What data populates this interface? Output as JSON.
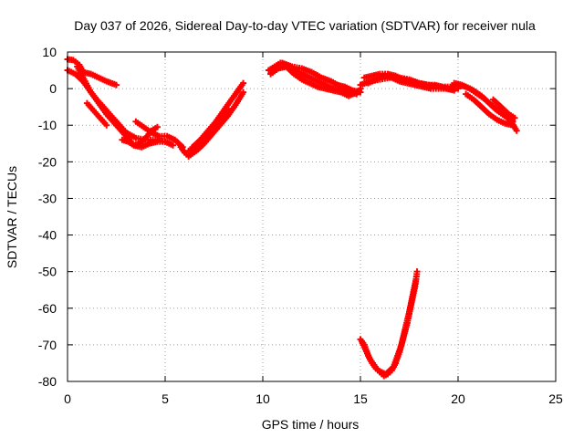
{
  "chart_data": {
    "type": "scatter",
    "title": "Day 037 of 2026, Sidereal Day-to-day VTEC variation (SDTVAR) for receiver nula",
    "xlabel": "GPS time / hours",
    "ylabel": "SDTVAR / TECUs",
    "xlim": [
      0,
      25
    ],
    "ylim": [
      -80,
      10
    ],
    "xticks": [
      0,
      5,
      10,
      15,
      20,
      25
    ],
    "yticks": [
      10,
      0,
      -10,
      -20,
      -30,
      -40,
      -50,
      -60,
      -70,
      -80
    ],
    "xtick_labels": [
      "0",
      "5",
      "10",
      "15",
      "20",
      "25"
    ],
    "ytick_labels": [
      "10",
      "0",
      "-10",
      "-20",
      "-30",
      "-40",
      "-50",
      "-60",
      "-70",
      "-80"
    ],
    "grid": true,
    "marker_color": "#ff0000",
    "series": [
      {
        "name": "track-a",
        "points": [
          [
            0,
            8
          ],
          [
            0.3,
            7.8
          ],
          [
            0.6,
            6.5
          ],
          [
            0.8,
            4.5
          ],
          [
            1.2,
            4
          ],
          [
            1.6,
            3
          ],
          [
            2.0,
            2
          ],
          [
            2.5,
            1
          ]
        ]
      },
      {
        "name": "track-b",
        "points": [
          [
            0,
            5
          ],
          [
            0.4,
            4
          ],
          [
            0.8,
            2
          ],
          [
            1.2,
            -1
          ],
          [
            1.6,
            -4
          ],
          [
            2.0,
            -7
          ],
          [
            2.5,
            -10
          ],
          [
            3.0,
            -13
          ],
          [
            3.4,
            -15.5
          ],
          [
            3.8,
            -16
          ],
          [
            4.2,
            -15
          ],
          [
            4.6,
            -14.5
          ],
          [
            5.0,
            -14.5
          ],
          [
            5.4,
            -15.5
          ]
        ]
      },
      {
        "name": "track-c",
        "points": [
          [
            0.5,
            6
          ],
          [
            0.9,
            2
          ],
          [
            1.2,
            -1
          ],
          [
            1.5,
            -3
          ],
          [
            2.0,
            -6
          ],
          [
            2.5,
            -9
          ],
          [
            3.0,
            -12
          ],
          [
            3.5,
            -13.5
          ],
          [
            4.0,
            -14
          ],
          [
            4.5,
            -14
          ],
          [
            5.0,
            -14.5
          ]
        ]
      },
      {
        "name": "track-d",
        "points": [
          [
            1.0,
            -4
          ],
          [
            1.5,
            -7
          ],
          [
            2.0,
            -10
          ]
        ]
      },
      {
        "name": "track-e",
        "points": [
          [
            3.5,
            -9
          ],
          [
            3.9,
            -10.5
          ],
          [
            4.3,
            -12
          ],
          [
            4.7,
            -13
          ],
          [
            5.1,
            -13
          ],
          [
            5.5,
            -14
          ],
          [
            5.9,
            -16
          ]
        ]
      },
      {
        "name": "track-f",
        "points": [
          [
            2.8,
            -14
          ],
          [
            3.1,
            -14.5
          ],
          [
            3.4,
            -15.5
          ],
          [
            3.7,
            -15
          ],
          [
            4.0,
            -13.5
          ],
          [
            4.3,
            -11.5
          ],
          [
            4.6,
            -10.5
          ]
        ]
      },
      {
        "name": "track-g",
        "points": [
          [
            5.8,
            -16
          ],
          [
            6.0,
            -17.5
          ],
          [
            6.2,
            -18.5
          ],
          [
            6.6,
            -17
          ],
          [
            7.0,
            -15
          ],
          [
            7.4,
            -12.5
          ],
          [
            7.8,
            -10
          ],
          [
            8.2,
            -7.5
          ],
          [
            8.6,
            -4.5
          ],
          [
            9.0,
            -1
          ]
        ]
      },
      {
        "name": "track-h",
        "points": [
          [
            6.4,
            -16
          ],
          [
            6.8,
            -14
          ],
          [
            7.2,
            -11.5
          ],
          [
            7.6,
            -9
          ],
          [
            8.0,
            -6
          ],
          [
            8.4,
            -3
          ],
          [
            8.8,
            0
          ],
          [
            9.0,
            1.5
          ]
        ]
      },
      {
        "name": "track-i",
        "points": [
          [
            6.2,
            -17
          ],
          [
            6.6,
            -16
          ],
          [
            7.0,
            -13.5
          ],
          [
            7.4,
            -11
          ],
          [
            7.8,
            -8.5
          ],
          [
            8.2,
            -5.5
          ]
        ]
      },
      {
        "name": "track-j",
        "points": [
          [
            10.3,
            5
          ],
          [
            10.6,
            6
          ],
          [
            10.9,
            7
          ],
          [
            11.2,
            6.5
          ],
          [
            11.6,
            5
          ],
          [
            12.0,
            4
          ],
          [
            12.4,
            3
          ],
          [
            12.8,
            2
          ],
          [
            13.2,
            1
          ],
          [
            13.6,
            0
          ],
          [
            14.0,
            -0.5
          ],
          [
            14.4,
            -1
          ],
          [
            14.8,
            -1.5
          ],
          [
            15.0,
            0
          ]
        ]
      },
      {
        "name": "track-k",
        "points": [
          [
            10.4,
            4
          ],
          [
            10.8,
            5.5
          ],
          [
            11.2,
            6
          ],
          [
            11.6,
            4
          ],
          [
            12.0,
            2.5
          ],
          [
            12.4,
            1.5
          ],
          [
            12.8,
            0.5
          ],
          [
            13.2,
            0
          ],
          [
            13.6,
            -0.5
          ],
          [
            14.0,
            -1
          ],
          [
            14.4,
            -2
          ],
          [
            14.6,
            -1.5
          ]
        ]
      },
      {
        "name": "track-l",
        "points": [
          [
            11.0,
            7
          ],
          [
            11.5,
            6
          ],
          [
            12.0,
            5.5
          ],
          [
            12.5,
            4.5
          ],
          [
            13.0,
            3
          ],
          [
            13.5,
            2
          ],
          [
            14.0,
            0.5
          ],
          [
            14.5,
            -0.5
          ]
        ]
      },
      {
        "name": "track-m",
        "points": [
          [
            13.8,
            1
          ],
          [
            14.2,
            0.5
          ],
          [
            14.6,
            -0.5
          ],
          [
            15.0,
            -1
          ]
        ]
      },
      {
        "name": "track-n",
        "points": [
          [
            15.0,
            1
          ],
          [
            15.5,
            2
          ],
          [
            16.0,
            2.5
          ],
          [
            16.5,
            3
          ],
          [
            17.0,
            3
          ],
          [
            17.5,
            2.5
          ],
          [
            18.0,
            1.5
          ],
          [
            18.5,
            1
          ],
          [
            19.0,
            0.5
          ],
          [
            19.5,
            0
          ],
          [
            20.0,
            0
          ]
        ]
      },
      {
        "name": "track-o",
        "points": [
          [
            15.2,
            3
          ],
          [
            15.6,
            3.5
          ],
          [
            16.0,
            4
          ],
          [
            16.4,
            4
          ],
          [
            16.8,
            3.5
          ],
          [
            17.2,
            2.5
          ],
          [
            17.6,
            2
          ],
          [
            18.0,
            1.5
          ],
          [
            18.4,
            1
          ],
          [
            18.8,
            1
          ],
          [
            19.2,
            0.5
          ],
          [
            19.6,
            0.5
          ],
          [
            20.0,
            1
          ],
          [
            20.4,
            0.5
          ],
          [
            20.8,
            -0.5
          ],
          [
            21.2,
            -2
          ],
          [
            21.6,
            -4
          ],
          [
            22.0,
            -6
          ],
          [
            22.4,
            -7.5
          ],
          [
            22.8,
            -9
          ]
        ]
      },
      {
        "name": "track-p",
        "points": [
          [
            15.4,
            1.5
          ],
          [
            15.8,
            2.5
          ],
          [
            16.2,
            3.5
          ],
          [
            16.6,
            3
          ],
          [
            17.0,
            2
          ],
          [
            17.4,
            1.5
          ],
          [
            17.8,
            1
          ],
          [
            18.2,
            0.5
          ],
          [
            18.6,
            0
          ],
          [
            19.0,
            0
          ],
          [
            19.4,
            0
          ],
          [
            19.8,
            -0.5
          ]
        ]
      },
      {
        "name": "track-q",
        "points": [
          [
            19.8,
            1.5
          ],
          [
            20.2,
            1
          ],
          [
            20.6,
            0
          ],
          [
            21.0,
            -1.5
          ],
          [
            21.4,
            -3
          ],
          [
            21.8,
            -5
          ],
          [
            22.2,
            -6.5
          ],
          [
            22.6,
            -8
          ],
          [
            23.0,
            -11.5
          ]
        ]
      },
      {
        "name": "track-r",
        "points": [
          [
            20.4,
            -1.5
          ],
          [
            20.8,
            -3
          ],
          [
            21.2,
            -5
          ],
          [
            21.6,
            -7
          ],
          [
            22.0,
            -8.5
          ],
          [
            22.4,
            -9.5
          ],
          [
            22.8,
            -10
          ]
        ]
      },
      {
        "name": "track-s",
        "points": [
          [
            21.8,
            -3
          ],
          [
            22.2,
            -5
          ],
          [
            22.6,
            -7
          ],
          [
            22.9,
            -8
          ]
        ]
      },
      {
        "name": "track-t",
        "points": [
          [
            15.0,
            -68.5
          ],
          [
            15.2,
            -70
          ],
          [
            15.4,
            -73
          ],
          [
            15.6,
            -75
          ],
          [
            15.8,
            -76.5
          ],
          [
            16.0,
            -77.5
          ],
          [
            16.2,
            -78.5
          ],
          [
            16.4,
            -78
          ],
          [
            16.6,
            -77
          ],
          [
            16.8,
            -75
          ],
          [
            17.0,
            -72
          ],
          [
            17.2,
            -68
          ],
          [
            17.4,
            -64
          ],
          [
            17.6,
            -59
          ],
          [
            17.8,
            -54
          ],
          [
            17.9,
            -50
          ]
        ]
      },
      {
        "name": "track-u",
        "points": [
          [
            15.1,
            -69.5
          ],
          [
            15.5,
            -74
          ],
          [
            15.9,
            -77
          ],
          [
            16.3,
            -78
          ],
          [
            16.7,
            -76
          ],
          [
            17.1,
            -70
          ],
          [
            17.5,
            -61
          ],
          [
            17.85,
            -52
          ]
        ]
      }
    ]
  }
}
